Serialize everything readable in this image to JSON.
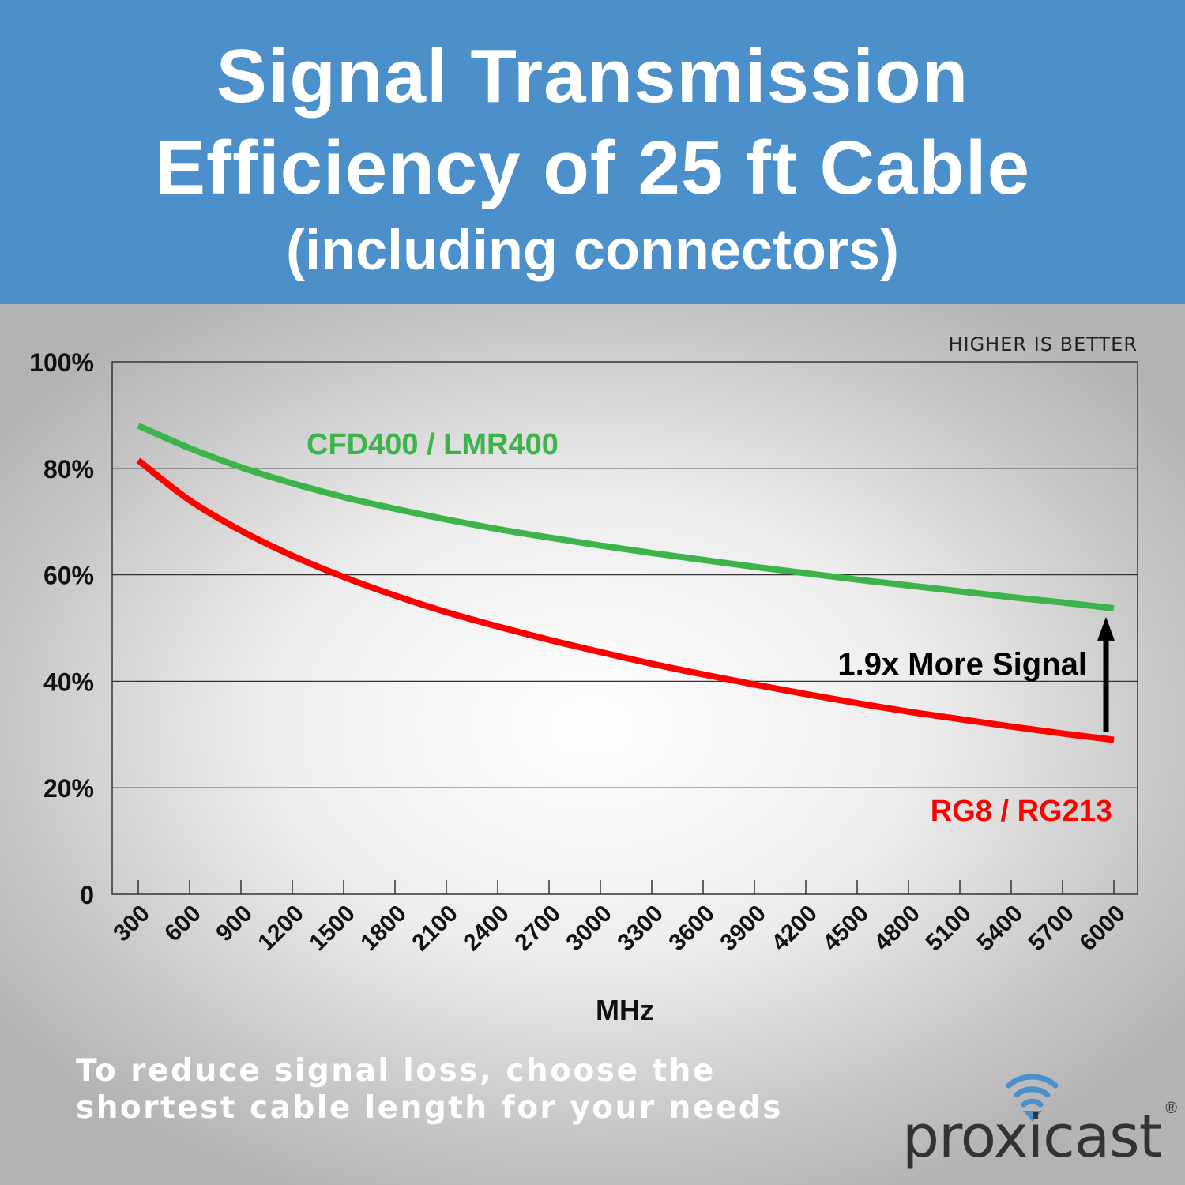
{
  "header": {
    "title_line1": "Signal Transmission",
    "title_line2": "Efficiency of 25 ft Cable",
    "title_line3": "(including connectors)",
    "background_color": "#4b8fcb"
  },
  "chart_data": {
    "type": "line",
    "title": "Signal Transmission Efficiency of 25 ft Cable (including connectors)",
    "note": "HIGHER IS BETTER",
    "xlabel": "MHz",
    "ylabel": "",
    "categories": [
      "300",
      "600",
      "900",
      "1200",
      "1500",
      "1800",
      "2100",
      "2400",
      "2700",
      "3000",
      "3300",
      "3600",
      "3900",
      "4200",
      "4500",
      "4800",
      "5100",
      "5400",
      "5700",
      "6000"
    ],
    "y_ticks": [
      {
        "value": 0,
        "label": "0"
      },
      {
        "value": 20,
        "label": "20%"
      },
      {
        "value": 40,
        "label": "40%"
      },
      {
        "value": 60,
        "label": "60%"
      },
      {
        "value": 80,
        "label": "80%"
      },
      {
        "value": 100,
        "label": "100%"
      }
    ],
    "ylim": [
      0,
      100
    ],
    "grid": true,
    "series": [
      {
        "name": "CFD400 / LMR400",
        "color": "#3cb44b",
        "values": [
          88.0,
          83.8,
          80.2,
          77.2,
          74.6,
          72.4,
          70.4,
          68.6,
          67.0,
          65.5,
          64.1,
          62.8,
          61.5,
          60.3,
          59.1,
          58.0,
          56.9,
          55.8,
          54.8,
          53.7
        ]
      },
      {
        "name": "RG8 / RG213",
        "color": "#ff0000",
        "values": [
          81.5,
          74.0,
          68.3,
          63.6,
          59.6,
          56.1,
          53.0,
          50.3,
          47.8,
          45.5,
          43.3,
          41.3,
          39.4,
          37.6,
          35.9,
          34.3,
          32.9,
          31.5,
          30.2,
          29.0
        ]
      }
    ],
    "annotation": {
      "text": "1.9x More Signal",
      "arrow_from_value": 30.5,
      "arrow_to_value": 51.5,
      "at_category": "6000"
    }
  },
  "footer": {
    "line1": "To reduce signal loss, choose the",
    "line2": "shortest cable length for your needs"
  },
  "logo": {
    "text": "proxicast",
    "registered": "®"
  }
}
